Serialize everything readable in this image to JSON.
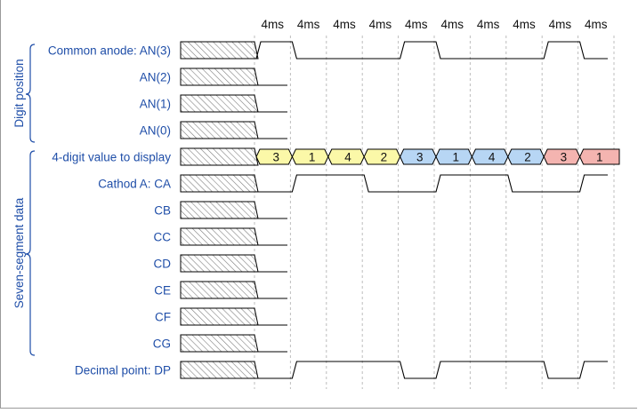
{
  "time_labels": [
    "4ms",
    "4ms",
    "4ms",
    "4ms",
    "4ms",
    "4ms",
    "4ms",
    "4ms",
    "4ms",
    "4ms"
  ],
  "groups": [
    {
      "label": "Digit position"
    },
    {
      "label": "Seven-segment data"
    }
  ],
  "signals": [
    {
      "label": "Common anode: AN(3)",
      "kind": "wave",
      "levels": [
        1,
        0,
        0,
        0,
        1,
        0,
        0,
        0,
        1,
        0
      ]
    },
    {
      "label": "AN(2)",
      "kind": "low"
    },
    {
      "label": "AN(1)",
      "kind": "low"
    },
    {
      "label": "AN(0)",
      "kind": "low"
    },
    {
      "label": "4-digit value to display",
      "kind": "bus",
      "values": [
        "3",
        "1",
        "4",
        "2",
        "3",
        "1",
        "4",
        "2",
        "3",
        "1"
      ],
      "colors": [
        "#fbf8a8",
        "#fbf8a8",
        "#fbf8a8",
        "#fbf8a8",
        "#b7d6f4",
        "#b7d6f4",
        "#b7d6f4",
        "#b7d6f4",
        "#f4b4b0",
        "#f4b4b0"
      ]
    },
    {
      "label": "Cathod A: CA",
      "kind": "wave",
      "levels": [
        0,
        1,
        1,
        0,
        0,
        1,
        1,
        0,
        0,
        1
      ]
    },
    {
      "label": "CB",
      "kind": "low"
    },
    {
      "label": "CC",
      "kind": "low"
    },
    {
      "label": "CD",
      "kind": "low"
    },
    {
      "label": "CE",
      "kind": "low"
    },
    {
      "label": "CF",
      "kind": "low"
    },
    {
      "label": "CG",
      "kind": "low"
    },
    {
      "label": "Decimal point: DP",
      "kind": "wave",
      "levels": [
        0,
        1,
        1,
        1,
        0,
        1,
        1,
        1,
        0,
        1
      ]
    }
  ],
  "colors": {
    "label": "#1f4ea8",
    "grid": "#bdbdbd",
    "hatch": "#808080"
  }
}
